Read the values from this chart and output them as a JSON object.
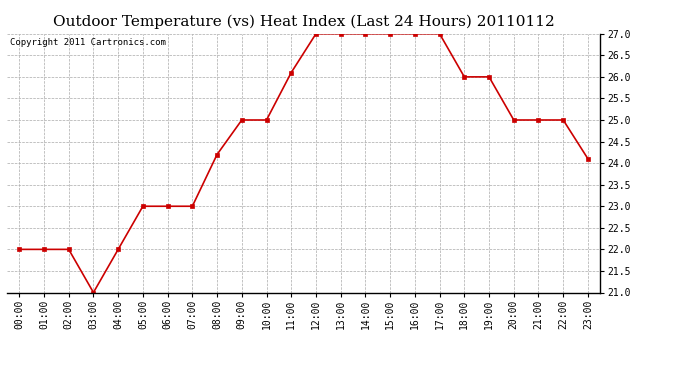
{
  "title": "Outdoor Temperature (vs) Heat Index (Last 24 Hours) 20110112",
  "copyright": "Copyright 2011 Cartronics.com",
  "x_labels": [
    "00:00",
    "01:00",
    "02:00",
    "03:00",
    "04:00",
    "05:00",
    "06:00",
    "07:00",
    "08:00",
    "09:00",
    "10:00",
    "11:00",
    "12:00",
    "13:00",
    "14:00",
    "15:00",
    "16:00",
    "17:00",
    "18:00",
    "19:00",
    "20:00",
    "21:00",
    "22:00",
    "23:00"
  ],
  "y_values": [
    22.0,
    22.0,
    22.0,
    21.0,
    22.0,
    23.0,
    23.0,
    23.0,
    24.2,
    25.0,
    25.0,
    26.1,
    27.0,
    27.0,
    27.0,
    27.0,
    27.0,
    27.0,
    26.0,
    26.0,
    25.0,
    25.0,
    25.0,
    24.1
  ],
  "ylim": [
    21.0,
    27.0
  ],
  "ytick_step": 0.5,
  "line_color": "#cc0000",
  "marker": "s",
  "marker_size": 3,
  "bg_color": "#ffffff",
  "grid_color": "#aaaaaa",
  "title_fontsize": 11,
  "copyright_fontsize": 6.5,
  "tick_fontsize": 7
}
